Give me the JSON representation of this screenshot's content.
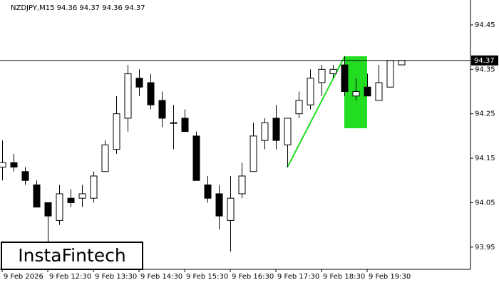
{
  "chart_data": {
    "type": "candlestick",
    "title": "NZDJPY,M15  94.36 94.37 94.36 94.37",
    "watermark": "InstaFintech",
    "categories": [
      "9 Feb 2026",
      null,
      null,
      null,
      "9 Feb 12:30",
      null,
      null,
      null,
      "9 Feb 13:30",
      null,
      null,
      null,
      "9 Feb 14:30",
      null,
      null,
      null,
      "9 Feb 15:30",
      null,
      null,
      null,
      "9 Feb 16:30",
      null,
      null,
      null,
      "9 Feb 17:30",
      null,
      null,
      null,
      "9 Feb 18:30",
      null,
      null,
      null,
      "9 Feb 19:30",
      null,
      null,
      null
    ],
    "open": [
      94.13,
      94.14,
      94.12,
      94.09,
      94.05,
      94.01,
      94.06,
      94.06,
      94.06,
      94.12,
      94.17,
      94.24,
      94.33,
      94.32,
      94.28,
      94.23,
      94.24,
      94.2,
      94.09,
      94.07,
      94.01,
      94.07,
      94.12,
      94.19,
      94.24,
      94.18,
      94.25,
      94.27,
      94.32,
      94.34,
      94.36,
      94.29,
      94.31,
      94.28,
      94.31,
      94.36
    ],
    "high": [
      94.19,
      94.16,
      94.13,
      94.1,
      94.05,
      94.09,
      94.08,
      94.09,
      94.12,
      94.19,
      94.29,
      94.36,
      94.35,
      94.34,
      94.3,
      94.27,
      94.26,
      94.21,
      94.11,
      94.09,
      94.11,
      94.14,
      94.23,
      94.24,
      94.27,
      94.24,
      94.3,
      94.35,
      94.36,
      94.36,
      94.38,
      94.33,
      94.34,
      94.36,
      94.37,
      94.37
    ],
    "low": [
      94.1,
      94.12,
      94.09,
      94.04,
      93.96,
      94.0,
      94.04,
      94.04,
      94.05,
      94.12,
      94.16,
      94.21,
      94.29,
      94.26,
      94.22,
      94.17,
      94.21,
      94.1,
      94.05,
      93.99,
      93.94,
      94.06,
      94.12,
      94.17,
      94.17,
      94.13,
      94.24,
      94.26,
      94.29,
      94.33,
      94.29,
      94.28,
      94.29,
      94.28,
      94.31,
      94.36
    ],
    "close": [
      94.14,
      94.13,
      94.1,
      94.04,
      94.02,
      94.07,
      94.05,
      94.07,
      94.11,
      94.18,
      94.25,
      94.34,
      94.31,
      94.27,
      94.24,
      94.23,
      94.21,
      94.1,
      94.06,
      94.02,
      94.06,
      94.11,
      94.2,
      94.23,
      94.19,
      94.24,
      94.28,
      94.33,
      94.35,
      94.35,
      94.3,
      94.3,
      94.29,
      94.32,
      94.37,
      94.37
    ],
    "current_price": 94.37,
    "ylim": [
      93.9,
      94.506
    ],
    "yticks": [
      93.95,
      94.05,
      94.15,
      94.25,
      94.35,
      94.45
    ]
  }
}
